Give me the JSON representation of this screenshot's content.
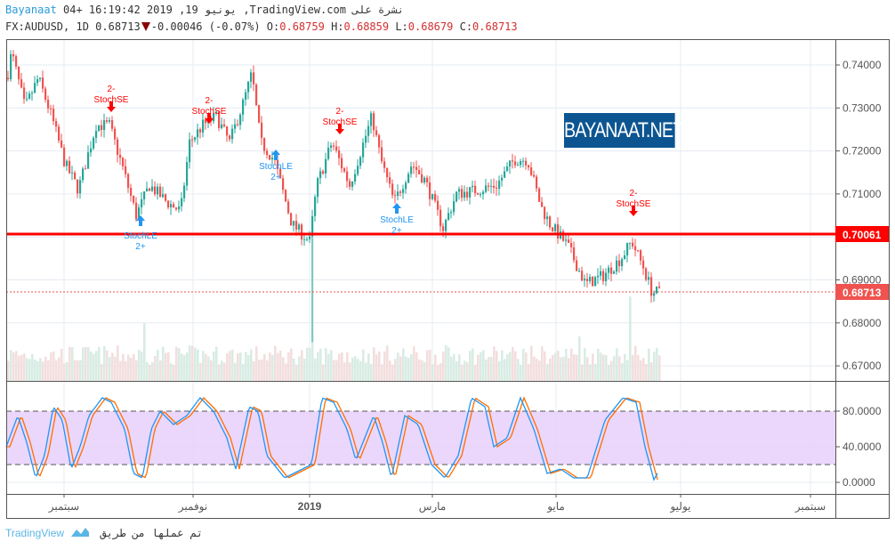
{
  "header": {
    "author": "Bayanaat",
    "published_text": "04+ 16:19:42 2019 ,19 يونيو ,TradingView.com نشرة على",
    "symbol": "FX:AUDUSD, 1D",
    "last": "0.68713",
    "change": "-0.00046 (-0.07%)",
    "o_label": "O:",
    "o": "0.68759",
    "h_label": "H:",
    "h": "0.68859",
    "l_label": "L:",
    "l": "0.68679",
    "c_label": "C:",
    "c": "0.68713"
  },
  "price_axis": [
    "0.74000",
    "0.73000",
    "0.72000",
    "0.71000",
    "0.69000",
    "0.68000",
    "0.67000"
  ],
  "price_tags": {
    "resistance": "0.70061",
    "last": "0.68713"
  },
  "stoch_axis": [
    "80.0000",
    "40.0000",
    "0.0000"
  ],
  "time_axis": [
    "سبتمبر",
    "نوفمبر",
    "2019",
    "مارس",
    "مايو",
    "يوليو",
    "سبتمبر"
  ],
  "signals": {
    "short_top": "2-",
    "short_bottom": "StochSE",
    "long_top": "StochLE",
    "long_bottom": "2+"
  },
  "watermark": "BAYANAAT.NET",
  "footer": {
    "brand": "TradingView",
    "text": "تم عملها من طريق"
  },
  "colors": {
    "up": "#26a69a",
    "down": "#ef5350",
    "resistance": "#ff0000",
    "stoch_k": "#2196f3",
    "stoch_d": "#ff6d00",
    "stoch_band": "#e1c8fb",
    "short_signal": "#ff0000",
    "long_signal": "#2196f3"
  }
}
